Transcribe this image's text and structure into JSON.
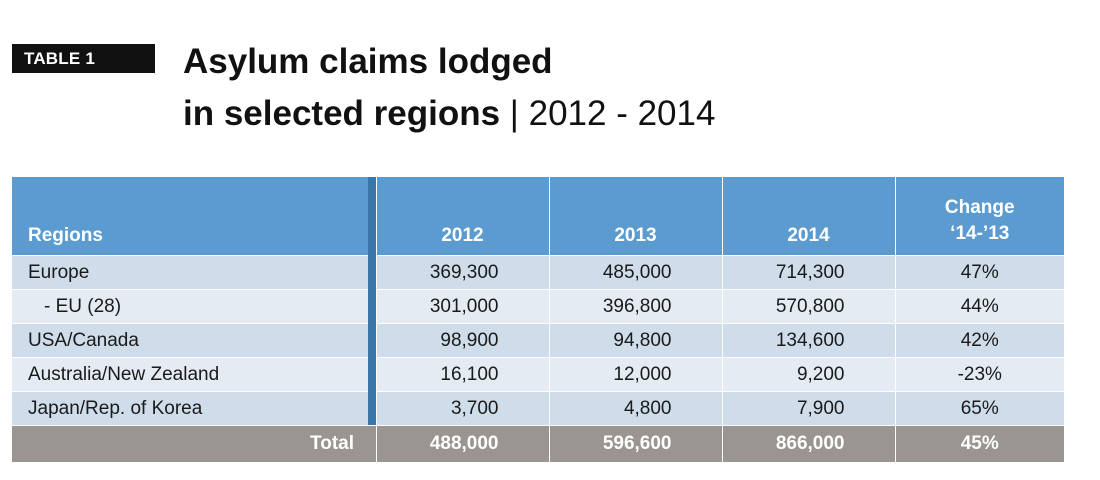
{
  "badge": "TABLE 1",
  "title": {
    "line1": "Asylum claims lodged",
    "line2": "in selected regions",
    "separator": "|",
    "years": "2012 - 2014"
  },
  "table": {
    "headers": {
      "region": "Regions",
      "y2012": "2012",
      "y2013": "2013",
      "y2014": "2014",
      "change_line1": "Change",
      "change_line2": "‘14-’13"
    },
    "rows": [
      {
        "region": "Europe",
        "y2012": "369,300",
        "y2013": "485,000",
        "y2014": "714,300",
        "change": "47%"
      },
      {
        "region": "- EU (28)",
        "y2012": "301,000",
        "y2013": "396,800",
        "y2014": "570,800",
        "change": "44%"
      },
      {
        "region": "USA/Canada",
        "y2012": "98,900",
        "y2013": "94,800",
        "y2014": "134,600",
        "change": "42%"
      },
      {
        "region": "Australia/New Zealand",
        "y2012": "16,100",
        "y2013": "12,000",
        "y2014": "9,200",
        "change": "-23%"
      },
      {
        "region": "Japan/Rep. of Korea",
        "y2012": "3,700",
        "y2013": "4,800",
        "y2014": "7,900",
        "change": "65%"
      }
    ],
    "total": {
      "label": "Total",
      "y2012": "488,000",
      "y2013": "596,600",
      "y2014": "866,000",
      "change": "45%"
    }
  },
  "colors": {
    "header": "#5b9bd0",
    "row_light": "#e4ebf3",
    "row_dark": "#cfdcea",
    "total": "#9a9590",
    "badge": "#111111"
  }
}
